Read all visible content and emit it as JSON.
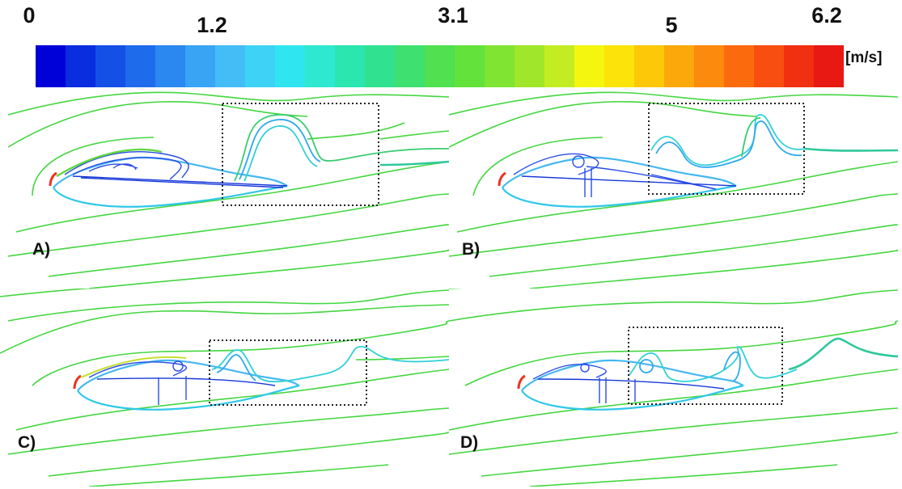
{
  "colorbar": {
    "ticks": [
      {
        "value": 0,
        "label": "0"
      },
      {
        "value": 1.2,
        "label": "1.2"
      },
      {
        "value": 3.1,
        "label": "3.1"
      },
      {
        "value": 5,
        "label": "5"
      },
      {
        "value": 6.2,
        "label": "6.2"
      }
    ],
    "unit": "[m/s]",
    "min": 0,
    "max": 6.2,
    "colors": [
      "#0000d8",
      "#0a2de0",
      "#1450e6",
      "#1e6cec",
      "#2a88f0",
      "#3aa4f4",
      "#44bcf6",
      "#3ed2f6",
      "#2fe6f0",
      "#2ee8d0",
      "#2ce6b0",
      "#30e290",
      "#3ee070",
      "#50e050",
      "#64e23c",
      "#80e432",
      "#a0e62a",
      "#c4ec22",
      "#f4f610",
      "#fce30a",
      "#fcc808",
      "#fca80a",
      "#fc8a0c",
      "#fc6a0e",
      "#f84e10",
      "#f03010",
      "#e81812"
    ]
  },
  "panels": [
    {
      "label": "A)"
    },
    {
      "label": "B)"
    },
    {
      "label": "C)"
    },
    {
      "label": "D)"
    }
  ]
}
